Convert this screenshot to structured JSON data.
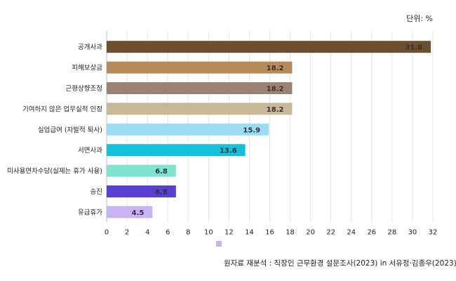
{
  "chart_data": {
    "type": "bar",
    "orientation": "horizontal",
    "unit_label": "단위: %",
    "categories": [
      "공개사과",
      "피해보상금",
      "근평상향조정",
      "기여하지 않은 업무실적 인정",
      "실업급여 (자발적 퇴사)",
      "서면사과",
      "미사용연차수당(실제는 휴가 사용)",
      "승진",
      "유급휴가"
    ],
    "values": [
      31.8,
      18.2,
      18.2,
      18.2,
      15.9,
      13.6,
      6.8,
      6.8,
      4.5
    ],
    "value_labels": [
      "31.8",
      "18.2",
      "18.2",
      "18.2",
      "15.9",
      "13.6",
      "6.8",
      "6.8",
      "4.5"
    ],
    "colors": [
      "#6b4f2e",
      "#b88a5a",
      "#9c8272",
      "#c9b898",
      "#9bdcf5",
      "#11c1d9",
      "#7fe3d1",
      "#5a3fd1",
      "#c8b3f5"
    ],
    "xlim": [
      0,
      32
    ],
    "x_ticks": [
      "0",
      "2",
      "4",
      "6",
      "8",
      "10",
      "12",
      "14",
      "16",
      "18",
      "20",
      "22",
      "24",
      "26",
      "28",
      "30",
      "32"
    ],
    "grid": true,
    "legend_marker_color": "#c8b3f5",
    "source": "원자료 재분석 : 직장인 근무환경 설문조사(2023) in 서유정·김종우(2023)"
  }
}
